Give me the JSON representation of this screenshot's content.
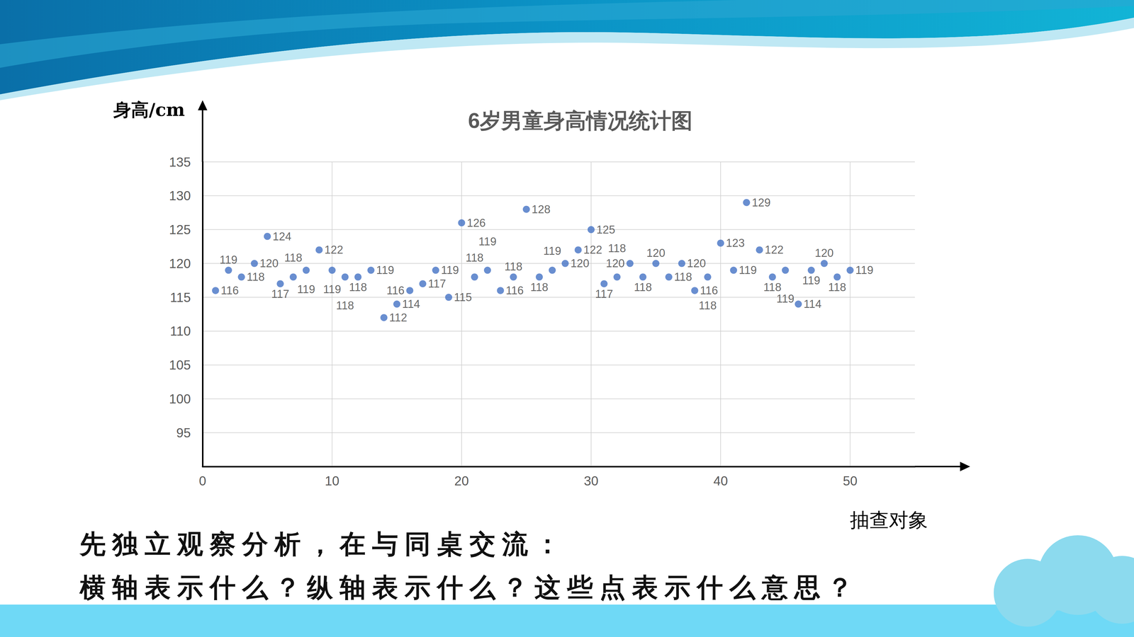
{
  "chart_data": {
    "type": "scatter",
    "title": "6岁男童身高情况统计图",
    "x_label": "抽查对象",
    "y_label": "身高/cm",
    "x": [
      1,
      2,
      3,
      4,
      5,
      6,
      7,
      8,
      9,
      10,
      11,
      12,
      13,
      14,
      15,
      16,
      17,
      18,
      19,
      20,
      21,
      22,
      23,
      24,
      25,
      26,
      27,
      28,
      29,
      30,
      31,
      32,
      33,
      34,
      35,
      36,
      37,
      38,
      39,
      40,
      41,
      42,
      43,
      44,
      45,
      46,
      47,
      48,
      49,
      50
    ],
    "values": [
      116,
      119,
      118,
      120,
      124,
      117,
      118,
      119,
      122,
      119,
      118,
      118,
      119,
      112,
      114,
      116,
      117,
      119,
      115,
      126,
      118,
      119,
      116,
      118,
      128,
      118,
      119,
      120,
      122,
      125,
      117,
      118,
      120,
      118,
      120,
      118,
      120,
      116,
      118,
      123,
      119,
      129,
      122,
      118,
      119,
      114,
      119,
      120,
      118,
      119
    ],
    "color": "#4472c4",
    "marker": "circle",
    "xlim": [
      0,
      55
    ],
    "xticks": [
      0,
      10,
      20,
      30,
      40,
      50
    ],
    "ylim": [
      90,
      135
    ],
    "yticks": [
      95,
      100,
      105,
      110,
      115,
      120,
      125,
      130,
      135
    ],
    "grid": true,
    "data_labels": true
  },
  "prompt": {
    "lines": [
      "先独立观察分析，在与同桌交流：",
      "横轴表示什么？纵轴表示什么？这些点表示什么意思？"
    ]
  }
}
